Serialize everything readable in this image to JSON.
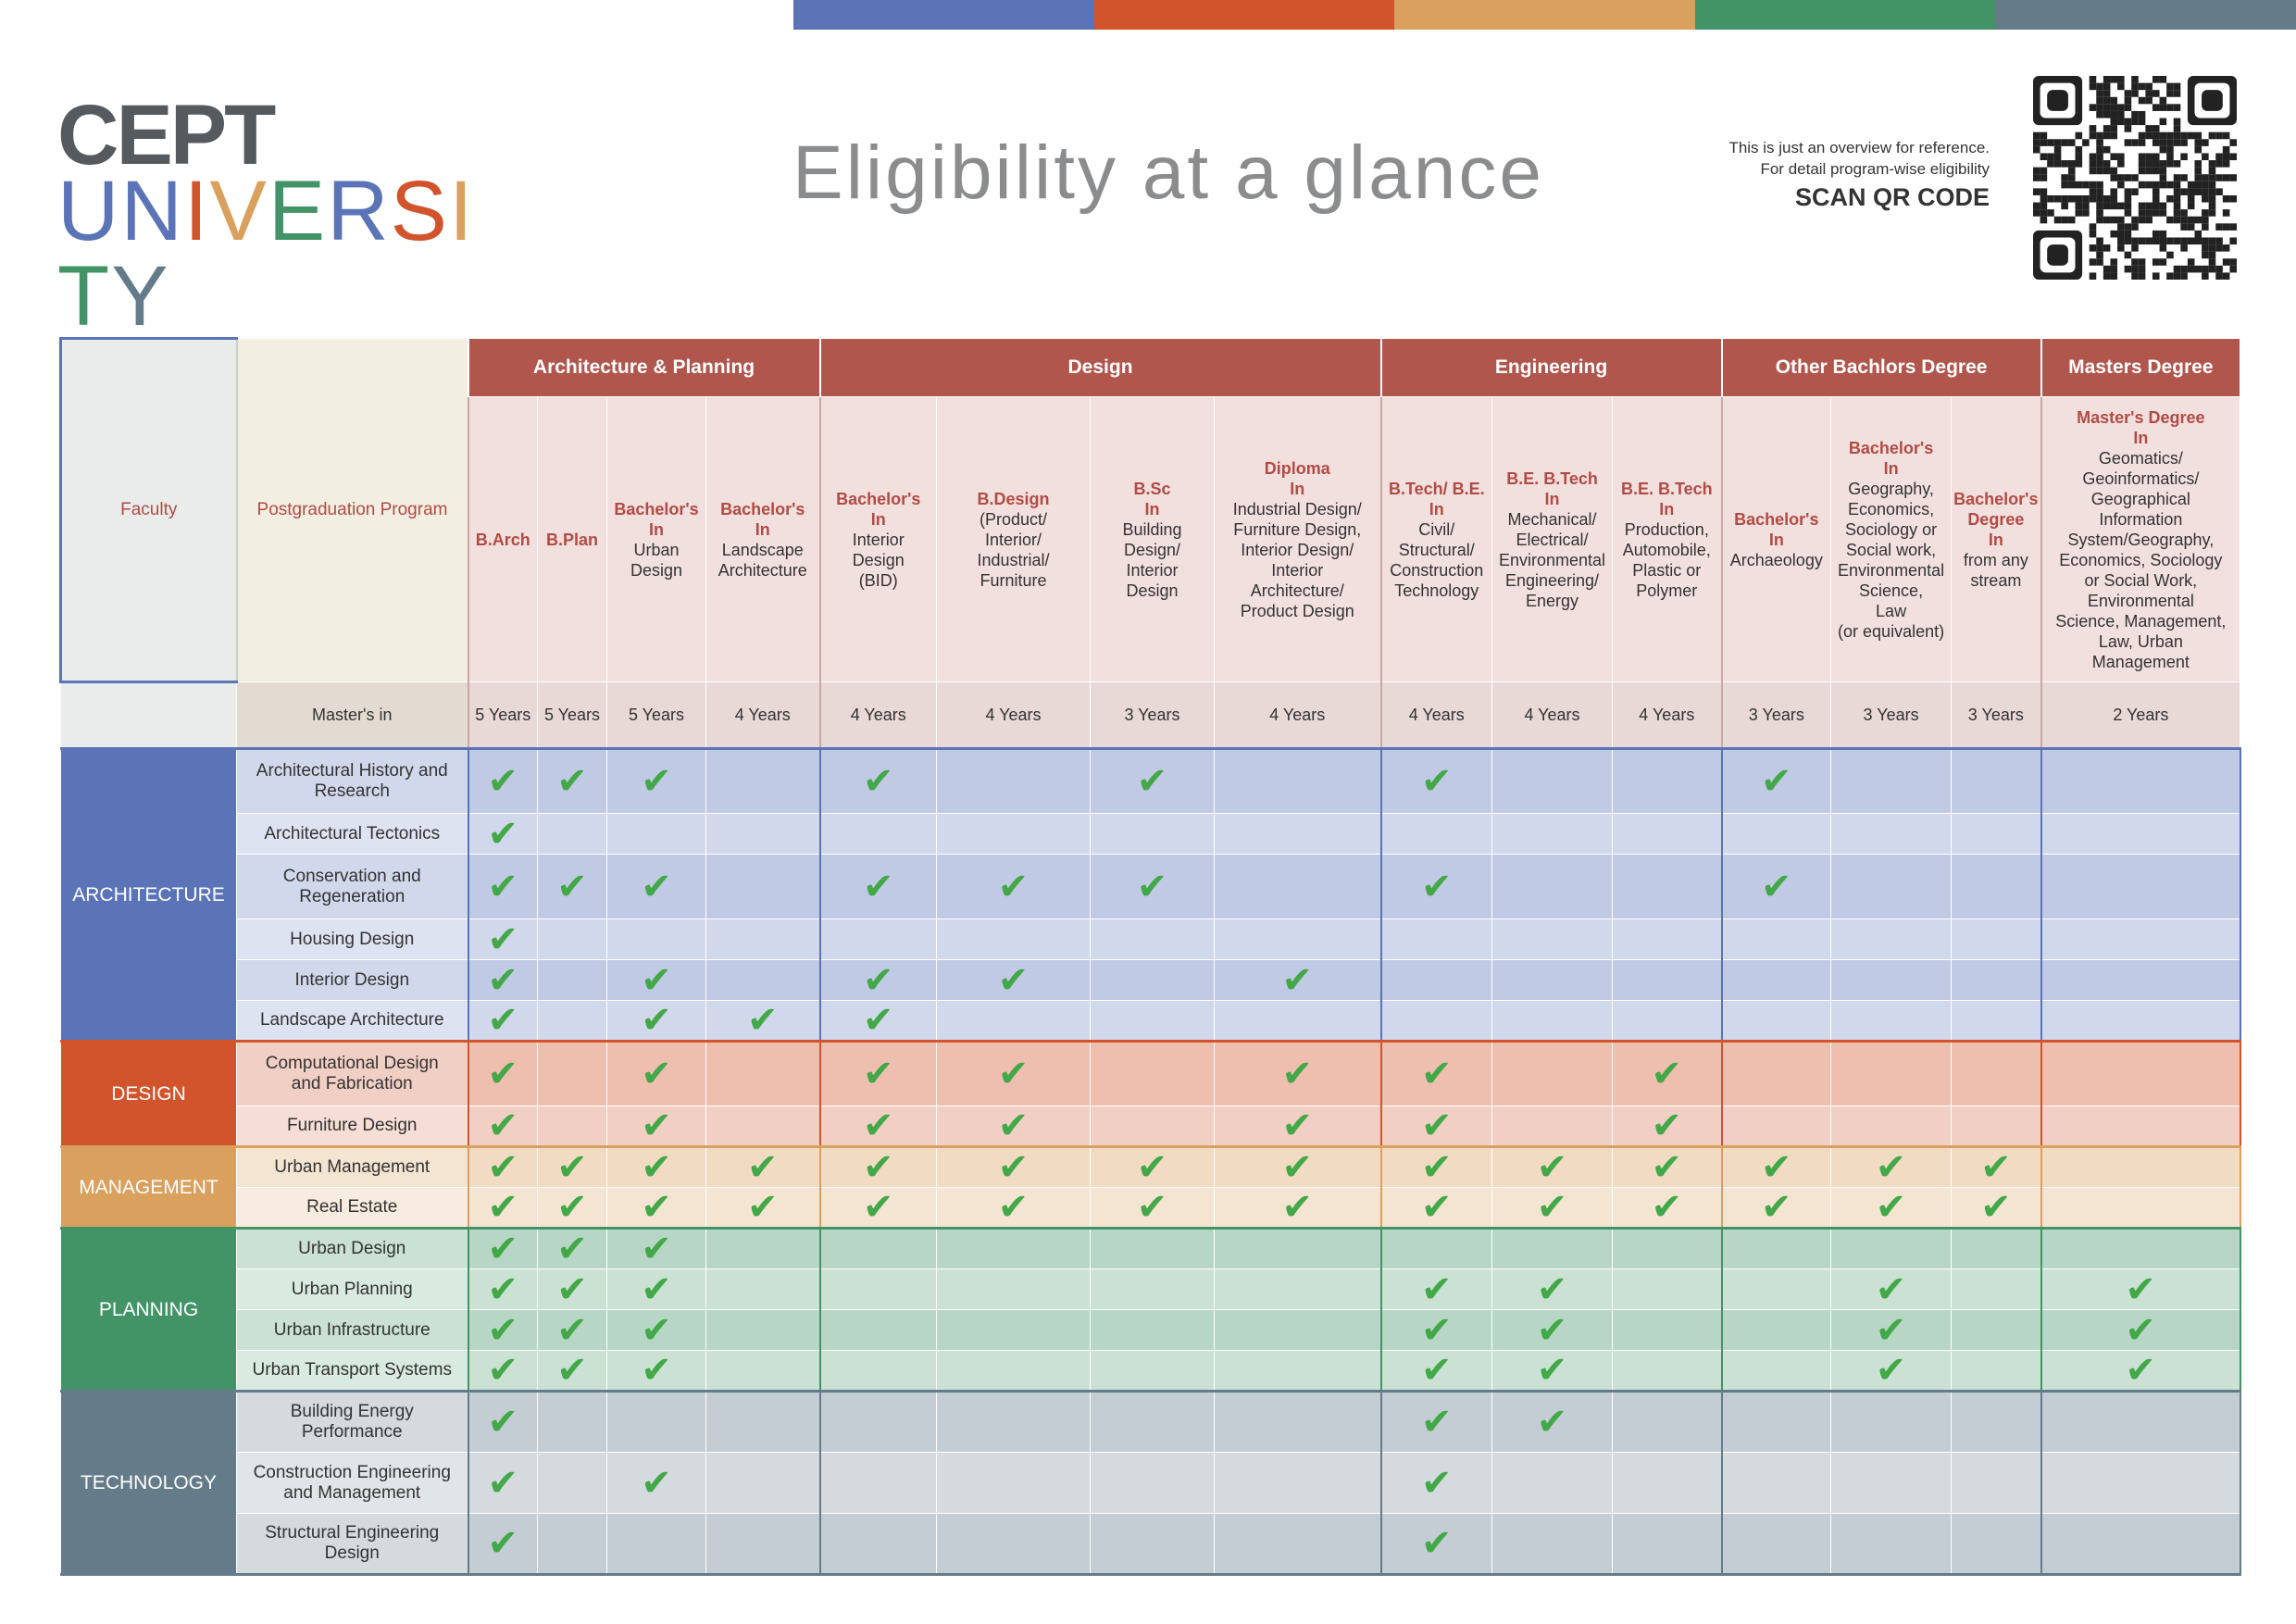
{
  "logo": {
    "line1": "CEPT",
    "line2_letters": [
      "U",
      "N",
      "I",
      "V",
      "E",
      "R",
      "S",
      "I",
      "T",
      "Y"
    ]
  },
  "title": "Eligibility at a glance",
  "note": {
    "line1": "This is just an overview for reference.",
    "line2": "For detail program-wise eligibility",
    "scan": "SCAN QR CODE"
  },
  "colors": {
    "architecture": "#5b74b8",
    "design": "#d2542c",
    "management": "#d9a05e",
    "planning": "#429467",
    "technology": "#647b8a",
    "header": "#b0564d"
  },
  "headers": {
    "faculty": "Faculty",
    "program": "Postgraduation Program",
    "masters_in": "Master's in",
    "groups": [
      {
        "label": "Architecture & Planning",
        "span": 4
      },
      {
        "label": "Design",
        "span": 4
      },
      {
        "label": "Engineering",
        "span": 3
      },
      {
        "label": "Other Bachlors Degree",
        "span": 3
      },
      {
        "label": "Masters Degree",
        "span": 1
      }
    ],
    "degrees": [
      {
        "title": "B.Arch",
        "detail": ""
      },
      {
        "title": "B.Plan",
        "detail": ""
      },
      {
        "title": "Bachelor's\nIn",
        "detail": "Urban\nDesign"
      },
      {
        "title": "Bachelor's\nIn",
        "detail": "Landscape\nArchitecture"
      },
      {
        "title": "Bachelor's\nIn",
        "detail": "Interior\nDesign\n(BID)"
      },
      {
        "title": "B.Design",
        "detail": "(Product/\nInterior/\nIndustrial/\nFurniture"
      },
      {
        "title": "B.Sc\nIn",
        "detail": "Building\nDesign/\nInterior\nDesign"
      },
      {
        "title": "Diploma\nIn",
        "detail": "Industrial Design/\nFurniture Design,\nInterior Design/\nInterior\nArchitecture/\nProduct Design"
      },
      {
        "title": "B.Tech/ B.E.\nIn",
        "detail": "Civil/\nStructural/\nConstruction\nTechnology"
      },
      {
        "title": "B.E. B.Tech\nIn",
        "detail": "Mechanical/\nElectrical/\nEnvironmental\nEngineering/\nEnergy"
      },
      {
        "title": "B.E. B.Tech\nIn",
        "detail": "Production,\nAutomobile,\nPlastic or\nPolymer"
      },
      {
        "title": "Bachelor's\nIn",
        "detail": "Archaeology"
      },
      {
        "title": "Bachelor's\nIn",
        "detail": "Geography,\nEconomics,\nSociology or\nSocial work,\nEnvironmental\nScience,\nLaw\n(or equivalent)"
      },
      {
        "title": "Bachelor's\nDegree\nIn",
        "detail": "from any\nstream"
      },
      {
        "title": "Master's Degree\nIn",
        "detail": "Geomatics/\nGeoinformatics/\nGeographical\nInformation\nSystem/Geography,\nEconomics, Sociology\nor Social Work,\nEnvironmental\nScience, Management,\nLaw, Urban\nManagement"
      }
    ],
    "durations": [
      "5 Years",
      "5 Years",
      "5 Years",
      "4 Years",
      "4 Years",
      "4 Years",
      "3 Years",
      "4 Years",
      "4 Years",
      "4 Years",
      "4 Years",
      "3 Years",
      "3 Years",
      "3 Years",
      "2 Years"
    ]
  },
  "check_symbol": "✔",
  "faculties": [
    {
      "name": "ARCHITECTURE",
      "key": "architecture",
      "rows": [
        {
          "program": "Architectural History and\nResearch",
          "checks": [
            1,
            1,
            1,
            0,
            1,
            0,
            1,
            0,
            1,
            0,
            0,
            1,
            0,
            0,
            0
          ]
        },
        {
          "program": "Architectural Tectonics",
          "checks": [
            1,
            0,
            0,
            0,
            0,
            0,
            0,
            0,
            0,
            0,
            0,
            0,
            0,
            0,
            0
          ]
        },
        {
          "program": "Conservation and\nRegeneration",
          "checks": [
            1,
            1,
            1,
            0,
            1,
            1,
            1,
            0,
            1,
            0,
            0,
            1,
            0,
            0,
            0
          ]
        },
        {
          "program": "Housing Design",
          "checks": [
            1,
            0,
            0,
            0,
            0,
            0,
            0,
            0,
            0,
            0,
            0,
            0,
            0,
            0,
            0
          ]
        },
        {
          "program": "Interior Design",
          "checks": [
            1,
            0,
            1,
            0,
            1,
            1,
            0,
            1,
            0,
            0,
            0,
            0,
            0,
            0,
            0
          ]
        },
        {
          "program": "Landscape Architecture",
          "checks": [
            1,
            0,
            1,
            1,
            1,
            0,
            0,
            0,
            0,
            0,
            0,
            0,
            0,
            0,
            0
          ]
        }
      ]
    },
    {
      "name": "DESIGN",
      "key": "design",
      "rows": [
        {
          "program": "Computational Design\nand Fabrication",
          "checks": [
            1,
            0,
            1,
            0,
            1,
            1,
            0,
            1,
            1,
            0,
            1,
            0,
            0,
            0,
            0
          ]
        },
        {
          "program": "Furniture Design",
          "checks": [
            1,
            0,
            1,
            0,
            1,
            1,
            0,
            1,
            1,
            0,
            1,
            0,
            0,
            0,
            0
          ]
        }
      ]
    },
    {
      "name": "MANAGEMENT",
      "key": "management",
      "rows": [
        {
          "program": "Urban Management",
          "checks": [
            1,
            1,
            1,
            1,
            1,
            1,
            1,
            1,
            1,
            1,
            1,
            1,
            1,
            1,
            0
          ]
        },
        {
          "program": "Real Estate",
          "checks": [
            1,
            1,
            1,
            1,
            1,
            1,
            1,
            1,
            1,
            1,
            1,
            1,
            1,
            1,
            0
          ]
        }
      ]
    },
    {
      "name": "PLANNING",
      "key": "planning",
      "rows": [
        {
          "program": "Urban Design",
          "checks": [
            1,
            1,
            1,
            0,
            0,
            0,
            0,
            0,
            0,
            0,
            0,
            0,
            0,
            0,
            0
          ]
        },
        {
          "program": "Urban Planning",
          "checks": [
            1,
            1,
            1,
            0,
            0,
            0,
            0,
            0,
            1,
            1,
            0,
            0,
            1,
            0,
            1
          ]
        },
        {
          "program": "Urban Infrastructure",
          "checks": [
            1,
            1,
            1,
            0,
            0,
            0,
            0,
            0,
            1,
            1,
            0,
            0,
            1,
            0,
            1
          ]
        },
        {
          "program": "Urban Transport Systems",
          "checks": [
            1,
            1,
            1,
            0,
            0,
            0,
            0,
            0,
            1,
            1,
            0,
            0,
            1,
            0,
            1
          ]
        }
      ]
    },
    {
      "name": "TECHNOLOGY",
      "key": "technology",
      "rows": [
        {
          "program": "Building Energy\nPerformance",
          "checks": [
            1,
            0,
            0,
            0,
            0,
            0,
            0,
            0,
            1,
            1,
            0,
            0,
            0,
            0,
            0
          ]
        },
        {
          "program": "Construction Engineering\nand Management",
          "checks": [
            1,
            0,
            1,
            0,
            0,
            0,
            0,
            0,
            1,
            0,
            0,
            0,
            0,
            0,
            0
          ]
        },
        {
          "program": "Structural Engineering\nDesign",
          "checks": [
            1,
            0,
            0,
            0,
            0,
            0,
            0,
            0,
            1,
            0,
            0,
            0,
            0,
            0,
            0
          ]
        }
      ]
    }
  ]
}
